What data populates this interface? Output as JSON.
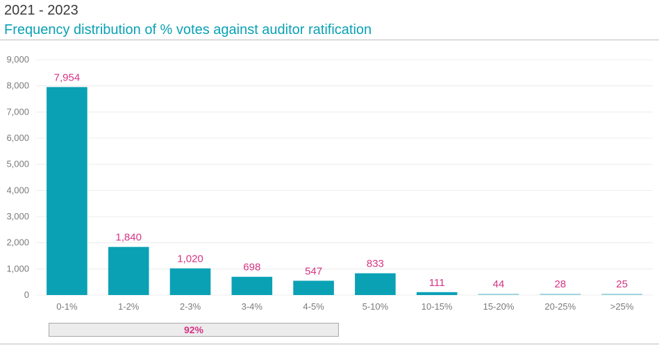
{
  "header": {
    "subtitle": "2021 - 2023",
    "title": "Frequency distribution of % votes against auditor ratification"
  },
  "colors": {
    "bar": "#0aa1b5",
    "bar_light": "#9fd6de",
    "label": "#d63384",
    "axis_text": "#7a7a7a",
    "grid": "#ececec"
  },
  "bracket": {
    "label": "92%"
  },
  "chart_data": {
    "type": "bar",
    "title": "Frequency distribution of % votes against auditor ratification",
    "subtitle": "2021 - 2023",
    "xlabel": "",
    "ylabel": "",
    "ylim": [
      0,
      9000
    ],
    "yticks": [
      0,
      1000,
      2000,
      3000,
      4000,
      5000,
      6000,
      7000,
      8000,
      9000
    ],
    "ytick_labels": [
      "0",
      "1,000",
      "2,000",
      "3,000",
      "4,000",
      "5,000",
      "6,000",
      "7,000",
      "8,000",
      "9,000"
    ],
    "grid": true,
    "categories": [
      "0-1%",
      "1-2%",
      "2-3%",
      "3-4%",
      "4-5%",
      "5-10%",
      "10-15%",
      "15-20%",
      "20-25%",
      ">25%"
    ],
    "values": [
      7954,
      1840,
      1020,
      698,
      547,
      833,
      111,
      44,
      28,
      25
    ],
    "value_labels": [
      "7,954",
      "1,840",
      "1,020",
      "698",
      "547",
      "833",
      "111",
      "44",
      "28",
      "25"
    ],
    "annotation": {
      "label": "92%",
      "spans_categories": [
        "0-1%",
        "1-2%",
        "2-3%",
        "3-4%",
        "4-5%"
      ]
    }
  }
}
